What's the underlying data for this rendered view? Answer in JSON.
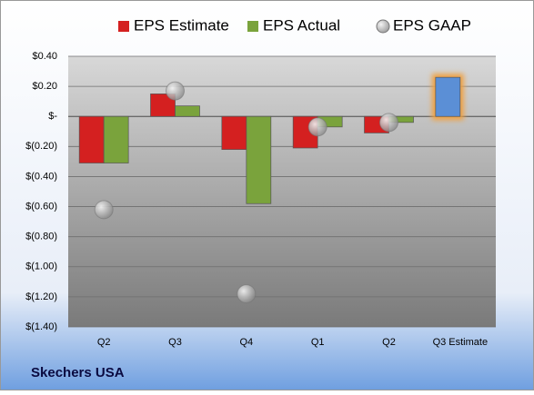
{
  "chart_data": {
    "type": "bar",
    "title": "Skechers USA",
    "categories": [
      "Q2",
      "Q3",
      "Q4",
      "Q1",
      "Q2",
      "Q3 Estimate"
    ],
    "series": [
      {
        "name": "EPS Estimate",
        "color": "#d42020",
        "colors": [
          "#d42020",
          "#d42020",
          "#d42020",
          "#d42020",
          "#d42020",
          "#5b8fd6"
        ],
        "values": [
          -0.31,
          0.15,
          -0.22,
          -0.21,
          -0.11,
          0.26
        ]
      },
      {
        "name": "EPS Actual",
        "color": "#7aa33c",
        "values": [
          -0.31,
          0.07,
          -0.58,
          -0.07,
          -0.04,
          null
        ]
      },
      {
        "name": "EPS GAAP",
        "color": "#9a9a9a",
        "marker": "circle",
        "values": [
          -0.62,
          0.17,
          -1.18,
          -0.07,
          -0.04,
          null
        ]
      }
    ],
    "ylim": [
      -1.4,
      0.4
    ],
    "yticks": [
      {
        "value": 0.4,
        "label": "$0.40"
      },
      {
        "value": 0.2,
        "label": "$0.20"
      },
      {
        "value": 0,
        "label": "$-"
      },
      {
        "value": -0.2,
        "label": "$(0.20)"
      },
      {
        "value": -0.4,
        "label": "$(0.40)"
      },
      {
        "value": -0.6,
        "label": "$(0.60)"
      },
      {
        "value": -0.8,
        "label": "$(0.80)"
      },
      {
        "value": -1.0,
        "label": "$(1.00)"
      },
      {
        "value": -1.2,
        "label": "$(1.20)"
      },
      {
        "value": -1.4,
        "label": "$(1.40)"
      }
    ],
    "grid": true
  }
}
